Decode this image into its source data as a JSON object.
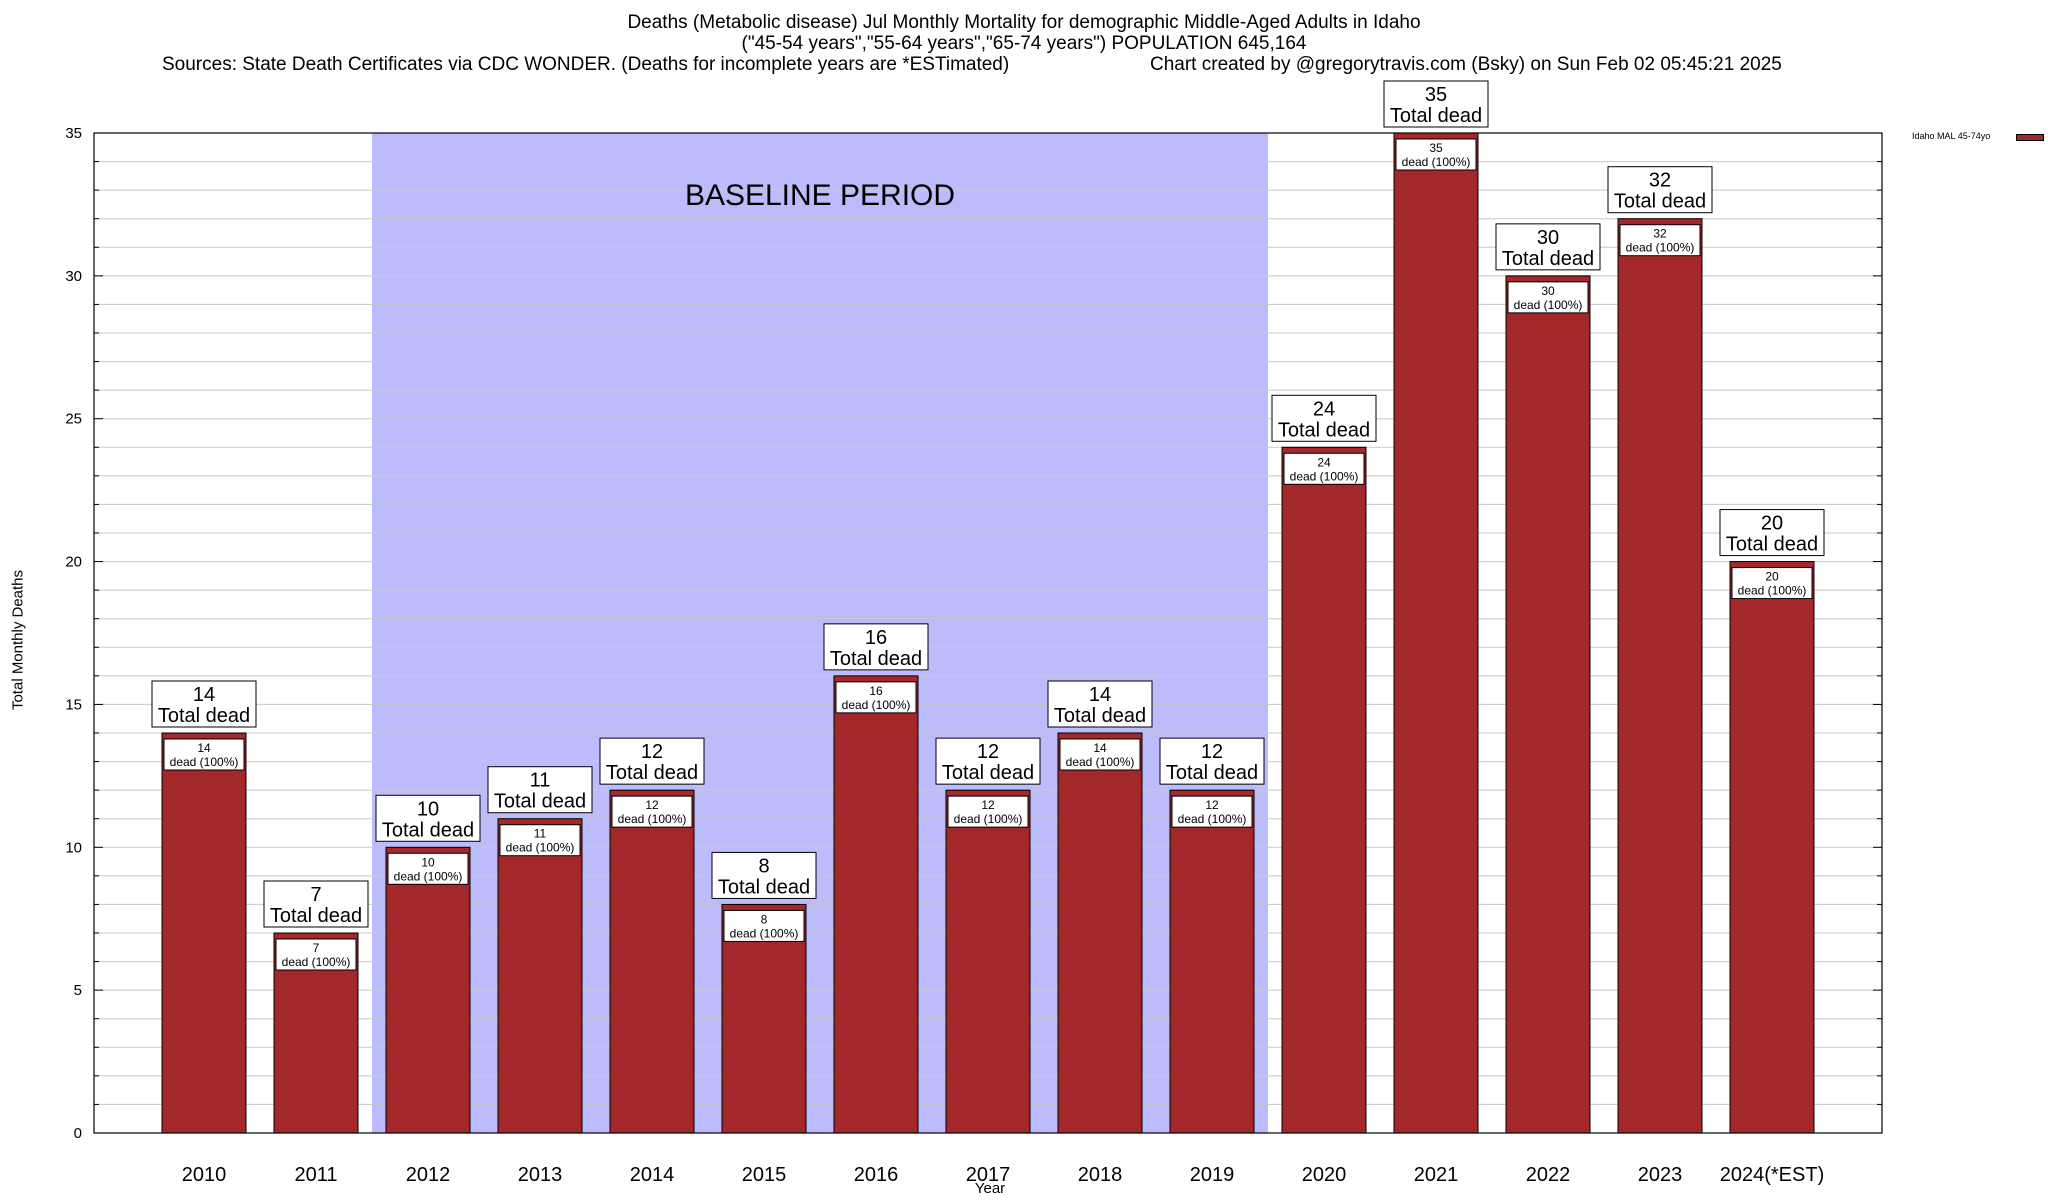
{
  "header": {
    "title_line1": "Deaths (Metabolic disease) Jul Monthly Mortality for demographic Middle-Aged Adults in Idaho",
    "title_line2": "(\"45-54 years\",\"55-64 years\",\"65-74 years\") POPULATION 645,164",
    "sources": "Sources: State Death Certificates via CDC WONDER. (Deaths for incomplete years are *ESTimated)",
    "credit": "Chart created by @gregorytravis.com (Bsky) on Sun Feb 02 05:45:21 2025"
  },
  "colors": {
    "bar": "#a4282a",
    "baseline_shade": "#bcbcfc",
    "grid": "#c8c8c8"
  },
  "chart_data": {
    "type": "bar",
    "categories": [
      "2010",
      "2011",
      "2012",
      "2013",
      "2014",
      "2015",
      "2016",
      "2017",
      "2018",
      "2019",
      "2020",
      "2021",
      "2022",
      "2023",
      "2024(*EST)"
    ],
    "series": [
      {
        "name": "Idaho MAL 45-74yo",
        "values": [
          14,
          7,
          10,
          11,
          12,
          8,
          16,
          12,
          14,
          12,
          24,
          35,
          30,
          32,
          20
        ]
      }
    ],
    "total_label_suffix": "Total dead",
    "inner_label_suffix": "dead (100%)",
    "xlabel": "Year",
    "ylabel": "Total Monthly Deaths",
    "ylim": [
      0,
      35
    ],
    "y_ticks": [
      0,
      5,
      10,
      15,
      20,
      25,
      30,
      35
    ],
    "y_minor_step": 1,
    "grid": true,
    "legend_position": "top-right",
    "annotations": [
      {
        "text": "BASELINE PERIOD",
        "from_category": "2012",
        "to_category": "2019"
      }
    ]
  }
}
